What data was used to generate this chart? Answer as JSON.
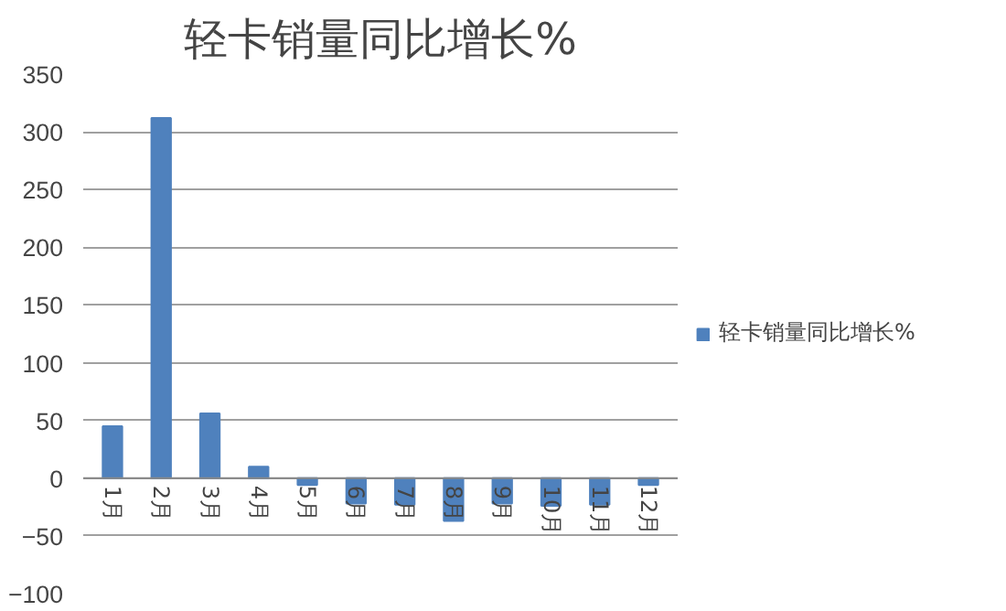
{
  "chart_data": {
    "type": "bar",
    "title": "轻卡销量同比增长%",
    "categories": [
      "1月",
      "2月",
      "3月",
      "4月",
      "5月",
      "6月",
      "7月",
      "8月",
      "9月",
      "10月",
      "11月",
      "12月"
    ],
    "series": [
      {
        "name": "轻卡销量同比增长%",
        "color": "#4f81bd",
        "values": [
          45,
          312,
          56,
          10,
          -6,
          -22,
          -23,
          -37,
          -22,
          -24,
          -23,
          -6
        ]
      }
    ],
    "ylim": [
      -100,
      350
    ],
    "yticks": [
      -100,
      -50,
      0,
      50,
      100,
      150,
      200,
      250,
      300,
      350
    ],
    "grid": "y",
    "legend": "right"
  }
}
